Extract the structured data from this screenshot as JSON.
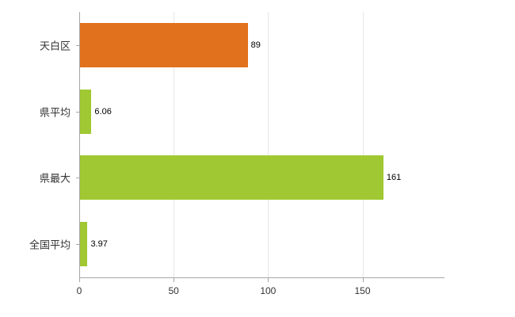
{
  "chart_data": {
    "type": "bar",
    "orientation": "horizontal",
    "title": "",
    "xlabel": "",
    "ylabel": "",
    "categories": [
      "天白区",
      "県平均",
      "県最大",
      "全国平均"
    ],
    "values": [
      89,
      6.06,
      161,
      3.97
    ],
    "value_labels": [
      "89",
      "6.06",
      "161",
      "3.97"
    ],
    "bar_colors": [
      "#e2711d",
      "#a0c832",
      "#a0c832",
      "#a0c832"
    ],
    "xlim": [
      0,
      193
    ],
    "x_ticks": [
      0,
      50,
      100,
      150
    ],
    "grid": true,
    "legend": false,
    "background": "#ffffff",
    "axis_color": "#a6a6a6",
    "grid_color": "#e6e6e6",
    "label_color": "#333333"
  }
}
